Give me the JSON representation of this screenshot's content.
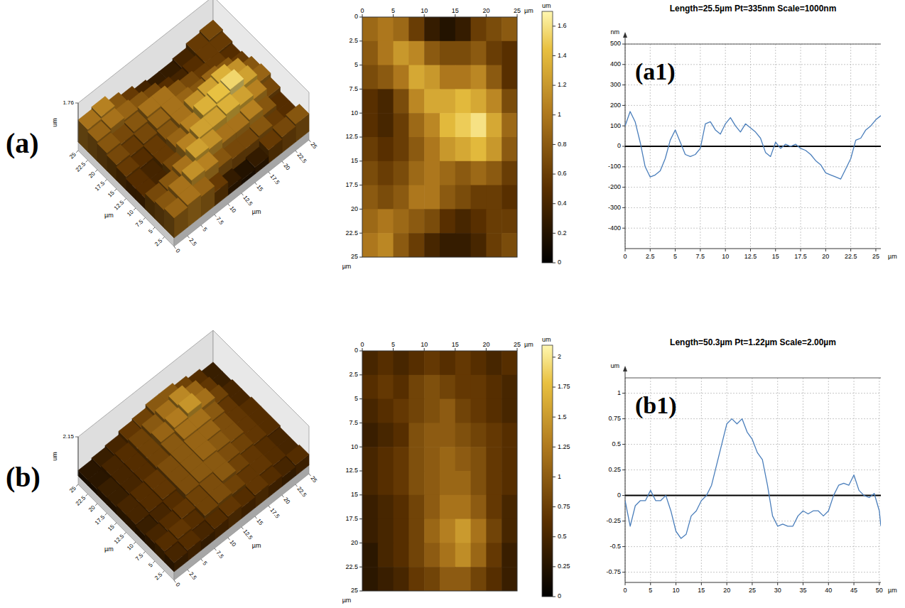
{
  "chart_data": [
    {
      "type": "surface3d",
      "panel": "(a)",
      "xlim": [
        0,
        25
      ],
      "ylim": [
        0,
        25
      ],
      "zlim": [
        0,
        1.76
      ],
      "xticks": [
        0,
        2.5,
        5,
        7.5,
        10,
        12.5,
        15,
        17.5,
        20,
        22.5,
        25
      ],
      "yticks": [
        2.5,
        5,
        7.5,
        10,
        12.5,
        15,
        17.5,
        20,
        22.5,
        25
      ],
      "zticks": [
        1.76
      ],
      "x_label": "µm",
      "y_label": "µm",
      "z_label": "um",
      "cells": [
        [
          0.9,
          1.0,
          0.9,
          0.6,
          0.3,
          0.2,
          0.3,
          0.6,
          0.7,
          0.8
        ],
        [
          0.8,
          1.0,
          1.2,
          1.1,
          0.8,
          0.7,
          0.7,
          0.8,
          0.6,
          0.5
        ],
        [
          0.7,
          0.8,
          1.0,
          1.3,
          1.2,
          1.0,
          1.0,
          1.1,
          0.8,
          0.5
        ],
        [
          0.5,
          0.4,
          0.7,
          1.1,
          1.3,
          1.3,
          1.4,
          1.3,
          1.1,
          0.7
        ],
        [
          0.5,
          0.4,
          0.6,
          0.9,
          1.1,
          1.4,
          1.5,
          1.6,
          1.3,
          0.9
        ],
        [
          0.6,
          0.5,
          0.6,
          0.8,
          1.0,
          1.2,
          1.3,
          1.4,
          1.2,
          0.8
        ],
        [
          0.7,
          0.6,
          0.7,
          0.9,
          1.0,
          0.9,
          0.8,
          0.9,
          0.8,
          0.6
        ],
        [
          0.8,
          0.7,
          0.8,
          1.0,
          1.0,
          0.8,
          0.7,
          0.6,
          0.6,
          0.5
        ],
        [
          0.9,
          1.0,
          0.9,
          0.8,
          0.7,
          0.5,
          0.4,
          0.5,
          0.6,
          0.6
        ],
        [
          1.0,
          1.1,
          0.8,
          0.6,
          0.4,
          0.3,
          0.3,
          0.4,
          0.6,
          0.7
        ]
      ]
    },
    {
      "type": "heatmap",
      "xlim": [
        0,
        25
      ],
      "ylim": [
        0,
        25
      ],
      "xticks": [
        0,
        5,
        10,
        15,
        20,
        25
      ],
      "yticks": [
        0,
        2.5,
        5,
        7.5,
        10,
        12.5,
        15,
        17.5,
        20,
        22.5,
        25
      ],
      "x_label": "µm",
      "y_label": "µm",
      "colorbar_range": [
        0,
        1.7
      ],
      "colorbar_ticks": [
        0,
        0.2,
        0.4,
        0.6,
        0.8,
        1,
        1.2,
        1.4,
        1.6
      ],
      "colorbar_label": "um",
      "cells": [
        [
          0.9,
          1.0,
          0.9,
          0.6,
          0.3,
          0.2,
          0.3,
          0.6,
          0.7,
          0.8
        ],
        [
          0.8,
          1.0,
          1.2,
          1.1,
          0.8,
          0.7,
          0.7,
          0.8,
          0.6,
          0.5
        ],
        [
          0.7,
          0.8,
          1.0,
          1.3,
          1.2,
          1.0,
          1.0,
          1.1,
          0.8,
          0.5
        ],
        [
          0.5,
          0.4,
          0.7,
          1.1,
          1.3,
          1.3,
          1.4,
          1.3,
          1.1,
          0.7
        ],
        [
          0.5,
          0.4,
          0.6,
          0.9,
          1.1,
          1.4,
          1.5,
          1.6,
          1.3,
          0.9
        ],
        [
          0.6,
          0.5,
          0.6,
          0.8,
          1.0,
          1.2,
          1.3,
          1.4,
          1.2,
          0.8
        ],
        [
          0.7,
          0.6,
          0.7,
          0.9,
          1.0,
          0.9,
          0.8,
          0.9,
          0.8,
          0.6
        ],
        [
          0.8,
          0.7,
          0.8,
          1.0,
          1.0,
          0.8,
          0.7,
          0.6,
          0.6,
          0.5
        ],
        [
          0.9,
          1.0,
          0.9,
          0.8,
          0.7,
          0.5,
          0.4,
          0.5,
          0.6,
          0.6
        ],
        [
          1.0,
          1.1,
          0.8,
          0.6,
          0.4,
          0.3,
          0.3,
          0.4,
          0.6,
          0.7
        ]
      ]
    },
    {
      "type": "line",
      "title": "Length=25.5µm Pt=335nm Scale=1000nm",
      "panel": "(a1)",
      "x_label": "µm",
      "y_label": "nm",
      "grid": true,
      "xlim": [
        0,
        25.5
      ],
      "ylim": [
        -500,
        500
      ],
      "xticks": [
        0,
        2.5,
        5,
        7.5,
        10,
        12.5,
        15,
        17.5,
        20,
        22.5,
        25
      ],
      "yticks": [
        -400,
        -300,
        -200,
        -100,
        0,
        100,
        200,
        300,
        400,
        500
      ],
      "x": [
        0,
        0.5,
        1,
        1.5,
        2,
        2.5,
        3,
        3.5,
        4,
        4.5,
        5,
        5.5,
        6,
        6.5,
        7,
        7.5,
        8,
        8.5,
        9,
        9.5,
        10,
        10.5,
        11,
        11.5,
        12,
        12.5,
        13,
        13.5,
        14,
        14.5,
        15,
        15.5,
        16,
        16.5,
        17,
        17.5,
        18,
        18.5,
        19,
        19.5,
        20,
        20.5,
        21,
        21.5,
        22,
        22.5,
        23,
        23.5,
        24,
        24.5,
        25,
        25.5
      ],
      "series": [
        {
          "color": "#4a7ebb",
          "values": [
            100,
            170,
            120,
            20,
            -100,
            -150,
            -140,
            -120,
            -60,
            30,
            80,
            20,
            -40,
            -50,
            -40,
            -10,
            110,
            120,
            80,
            60,
            110,
            140,
            100,
            70,
            110,
            90,
            70,
            40,
            -30,
            -50,
            20,
            -10,
            10,
            0,
            10,
            -10,
            -20,
            -40,
            -70,
            -90,
            -130,
            -140,
            -150,
            -160,
            -110,
            -60,
            30,
            40,
            80,
            100,
            130,
            150
          ]
        }
      ]
    },
    {
      "type": "surface3d",
      "panel": "(b)",
      "xlim": [
        0,
        25
      ],
      "ylim": [
        0,
        25
      ],
      "zlim": [
        0,
        2.15
      ],
      "xticks": [
        0,
        2.5,
        5,
        7.5,
        10,
        12.5,
        15,
        17.5,
        20,
        22.5,
        25
      ],
      "yticks": [
        2.5,
        5,
        7.5,
        10,
        12.5,
        15,
        17.5,
        20,
        22.5,
        25
      ],
      "zticks": [
        2.15
      ],
      "x_label": "µm",
      "y_label": "µm",
      "z_label": "um",
      "cells": [
        [
          0.5,
          0.6,
          0.5,
          0.6,
          0.7,
          0.6,
          0.7,
          0.6,
          0.5,
          0.6
        ],
        [
          0.6,
          0.7,
          0.6,
          0.8,
          0.9,
          0.8,
          0.7,
          0.7,
          0.6,
          0.5
        ],
        [
          0.5,
          0.6,
          0.7,
          0.8,
          0.9,
          1.0,
          0.8,
          0.7,
          0.6,
          0.5
        ],
        [
          0.4,
          0.5,
          0.6,
          0.9,
          1.0,
          1.0,
          0.9,
          0.8,
          0.7,
          0.6
        ],
        [
          0.5,
          0.6,
          0.7,
          0.9,
          1.0,
          1.1,
          1.0,
          0.9,
          0.7,
          0.6
        ],
        [
          0.5,
          0.6,
          0.7,
          0.9,
          1.0,
          1.1,
          1.1,
          0.9,
          0.7,
          0.6
        ],
        [
          0.4,
          0.5,
          0.6,
          0.8,
          1.0,
          1.2,
          1.2,
          1.0,
          0.7,
          0.5
        ],
        [
          0.4,
          0.5,
          0.6,
          0.8,
          1.1,
          1.3,
          1.5,
          1.2,
          0.8,
          0.5
        ],
        [
          0.3,
          0.5,
          0.6,
          0.8,
          1.0,
          1.2,
          1.4,
          1.1,
          0.7,
          0.4
        ],
        [
          0.3,
          0.4,
          0.5,
          0.7,
          0.8,
          1.0,
          1.0,
          0.8,
          0.6,
          0.4
        ]
      ]
    },
    {
      "type": "heatmap",
      "xlim": [
        0,
        25
      ],
      "ylim": [
        0,
        25
      ],
      "xticks": [
        0,
        5,
        10,
        15,
        20,
        25
      ],
      "yticks": [
        0,
        2.5,
        5,
        7.5,
        10,
        12.5,
        15,
        17.5,
        20,
        22.5,
        25
      ],
      "x_label": "µm",
      "y_label": "µm",
      "colorbar_range": [
        0,
        2.1
      ],
      "colorbar_ticks": [
        0,
        0.25,
        0.5,
        0.75,
        1,
        1.25,
        1.5,
        1.75,
        2
      ],
      "colorbar_label": "um",
      "cells": [
        [
          0.5,
          0.6,
          0.5,
          0.6,
          0.7,
          0.6,
          0.7,
          0.6,
          0.5,
          0.6
        ],
        [
          0.6,
          0.7,
          0.6,
          0.8,
          0.9,
          0.8,
          0.7,
          0.7,
          0.6,
          0.5
        ],
        [
          0.5,
          0.6,
          0.7,
          0.8,
          0.9,
          1.0,
          0.8,
          0.7,
          0.6,
          0.5
        ],
        [
          0.4,
          0.5,
          0.6,
          0.9,
          1.0,
          1.0,
          0.9,
          0.8,
          0.7,
          0.6
        ],
        [
          0.5,
          0.6,
          0.7,
          0.9,
          1.0,
          1.1,
          1.0,
          0.9,
          0.7,
          0.6
        ],
        [
          0.5,
          0.6,
          0.7,
          0.9,
          1.0,
          1.1,
          1.1,
          0.9,
          0.7,
          0.6
        ],
        [
          0.4,
          0.5,
          0.6,
          0.8,
          1.0,
          1.2,
          1.2,
          1.0,
          0.7,
          0.5
        ],
        [
          0.4,
          0.5,
          0.6,
          0.8,
          1.1,
          1.3,
          1.5,
          1.2,
          0.8,
          0.5
        ],
        [
          0.3,
          0.5,
          0.6,
          0.8,
          1.0,
          1.2,
          1.4,
          1.1,
          0.7,
          0.4
        ],
        [
          0.3,
          0.4,
          0.5,
          0.7,
          0.8,
          1.0,
          1.0,
          0.8,
          0.6,
          0.4
        ]
      ]
    },
    {
      "type": "line",
      "title": "Length=50.3µm Pt=1.22µm Scale=2.00µm",
      "panel": "(b1)",
      "x_label": "µm",
      "y_label": "um",
      "grid": true,
      "xlim": [
        0,
        50.3
      ],
      "ylim": [
        -0.85,
        1.15
      ],
      "xticks": [
        0,
        5,
        10,
        15,
        20,
        25,
        30,
        35,
        40,
        45,
        50
      ],
      "yticks": [
        -0.75,
        -0.5,
        -0.25,
        0,
        0.25,
        0.5,
        0.75,
        1
      ],
      "x": [
        0,
        1,
        2,
        3,
        4,
        5,
        6,
        7,
        8,
        9,
        10,
        11,
        12,
        13,
        14,
        15,
        16,
        17,
        18,
        19,
        20,
        21,
        22,
        23,
        24,
        25,
        26,
        27,
        28,
        29,
        30,
        31,
        32,
        33,
        34,
        35,
        36,
        37,
        38,
        39,
        40,
        41,
        42,
        43,
        44,
        45,
        46,
        47,
        48,
        49,
        50,
        50.3
      ],
      "series": [
        {
          "color": "#4a7ebb",
          "values": [
            -0.05,
            -0.3,
            -0.1,
            -0.05,
            -0.05,
            0.05,
            -0.05,
            -0.05,
            0.0,
            -0.15,
            -0.35,
            -0.42,
            -0.38,
            -0.2,
            -0.15,
            -0.05,
            0.0,
            0.1,
            0.3,
            0.5,
            0.7,
            0.75,
            0.7,
            0.75,
            0.62,
            0.55,
            0.42,
            0.35,
            0.1,
            -0.2,
            -0.3,
            -0.28,
            -0.3,
            -0.3,
            -0.2,
            -0.15,
            -0.18,
            -0.15,
            -0.15,
            -0.2,
            -0.15,
            0.0,
            0.1,
            0.12,
            0.1,
            0.2,
            0.05,
            0.0,
            -0.02,
            0.02,
            -0.15,
            -0.3
          ]
        }
      ]
    }
  ]
}
